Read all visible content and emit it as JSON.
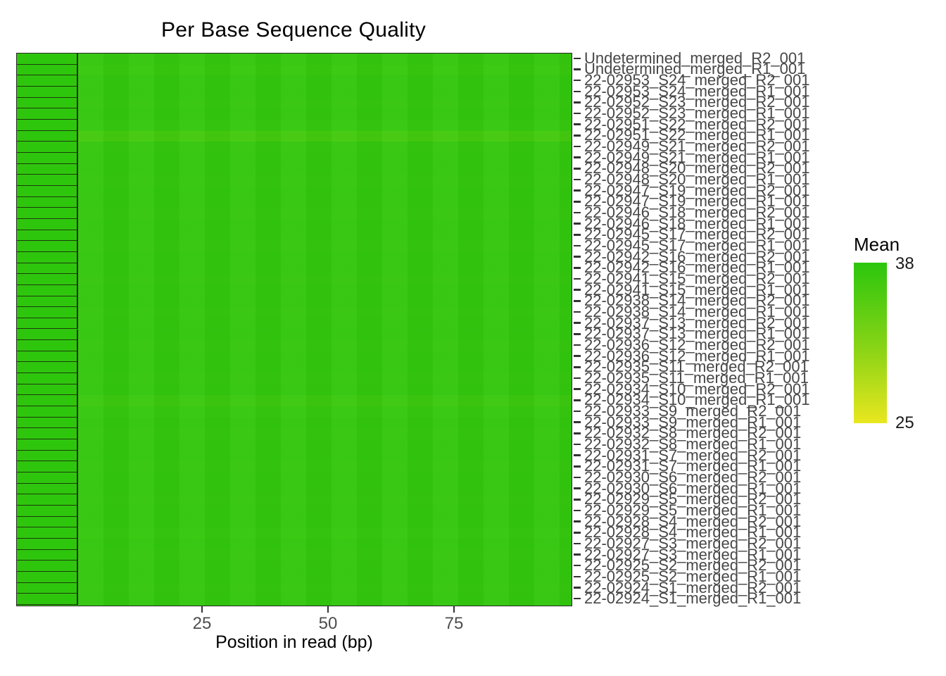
{
  "chart": {
    "title": "Per Base Sequence Quality",
    "xlabel": "Position in read (bp)",
    "legend": {
      "title": "Mean",
      "max_label": "38",
      "min_label": "25"
    }
  },
  "chart_data": {
    "type": "heatmap",
    "title": "Per Base Sequence Quality",
    "xlabel": "Position in read (bp)",
    "ylabel": "",
    "x_ticks": [
      25,
      50,
      75
    ],
    "x_range": [
      1,
      100
    ],
    "grid": false,
    "legend_position": "right",
    "color_scale": {
      "title": "Mean",
      "min": 25,
      "max": 38,
      "min_color": "#E9E71F",
      "mid_color": "#8CD416",
      "max_color": "#2BC60D"
    },
    "rows": [
      {
        "label": "Undetermined_merged_R2_001",
        "mean": 37.4,
        "first_bin_mean": 37.8
      },
      {
        "label": "Undetermined_merged_R1_001",
        "mean": 37.2,
        "first_bin_mean": 37.8
      },
      {
        "label": "22-02953_S24_merged_R2_001",
        "mean": 37.5,
        "first_bin_mean": 37.8
      },
      {
        "label": "22-02953_S24_merged_R1_001",
        "mean": 37.5,
        "first_bin_mean": 37.8
      },
      {
        "label": "22-02952_S23_merged_R2_001",
        "mean": 37.4,
        "first_bin_mean": 37.8
      },
      {
        "label": "22-02952_S23_merged_R1_001",
        "mean": 37.5,
        "first_bin_mean": 37.8
      },
      {
        "label": "22-02951_S22_merged_R2_001",
        "mean": 37.3,
        "first_bin_mean": 37.8
      },
      {
        "label": "22-02951_S22_merged_R1_001",
        "mean": 36.3,
        "first_bin_mean": 37.8
      },
      {
        "label": "22-02949_S21_merged_R2_001",
        "mean": 37.4,
        "first_bin_mean": 37.8
      },
      {
        "label": "22-02949_S21_merged_R1_001",
        "mean": 37.5,
        "first_bin_mean": 37.8
      },
      {
        "label": "22-02948_S20_merged_R2_001",
        "mean": 37.5,
        "first_bin_mean": 37.8
      },
      {
        "label": "22-02948_S20_merged_R1_001",
        "mean": 37.4,
        "first_bin_mean": 37.8
      },
      {
        "label": "22-02947_S19_merged_R2_001",
        "mean": 37.5,
        "first_bin_mean": 37.8
      },
      {
        "label": "22-02947_S19_merged_R1_001",
        "mean": 37.5,
        "first_bin_mean": 37.8
      },
      {
        "label": "22-02946_S18_merged_R2_001",
        "mean": 37.4,
        "first_bin_mean": 37.8
      },
      {
        "label": "22-02946_S18_merged_R1_001",
        "mean": 37.5,
        "first_bin_mean": 37.8
      },
      {
        "label": "22-02945_S17_merged_R2_001",
        "mean": 37.5,
        "first_bin_mean": 37.8
      },
      {
        "label": "22-02945_S17_merged_R1_001",
        "mean": 37.4,
        "first_bin_mean": 37.8
      },
      {
        "label": "22-02942_S16_merged_R2_001",
        "mean": 37.5,
        "first_bin_mean": 37.8
      },
      {
        "label": "22-02942_S16_merged_R1_001",
        "mean": 37.5,
        "first_bin_mean": 37.8
      },
      {
        "label": "22-02941_S15_merged_R2_001",
        "mean": 37.4,
        "first_bin_mean": 37.8
      },
      {
        "label": "22-02941_S15_merged_R1_001",
        "mean": 37.5,
        "first_bin_mean": 37.8
      },
      {
        "label": "22-02938_S14_merged_R2_001",
        "mean": 37.5,
        "first_bin_mean": 37.8
      },
      {
        "label": "22-02938_S14_merged_R1_001",
        "mean": 37.4,
        "first_bin_mean": 37.8
      },
      {
        "label": "22-02937_S13_merged_R2_001",
        "mean": 37.5,
        "first_bin_mean": 37.8
      },
      {
        "label": "22-02937_S13_merged_R1_001",
        "mean": 37.5,
        "first_bin_mean": 37.8
      },
      {
        "label": "22-02936_S12_merged_R2_001",
        "mean": 37.4,
        "first_bin_mean": 37.8
      },
      {
        "label": "22-02936_S12_merged_R1_001",
        "mean": 37.5,
        "first_bin_mean": 37.8
      },
      {
        "label": "22-02935_S11_merged_R2_001",
        "mean": 37.5,
        "first_bin_mean": 37.8
      },
      {
        "label": "22-02935_S11_merged_R1_001",
        "mean": 37.4,
        "first_bin_mean": 37.8
      },
      {
        "label": "22-02934_S10_merged_R2_001",
        "mean": 37.5,
        "first_bin_mean": 37.8
      },
      {
        "label": "22-02934_S10_merged_R1_001",
        "mean": 36.9,
        "first_bin_mean": 37.8
      },
      {
        "label": "22-02933_S9_merged_R2_001",
        "mean": 37.3,
        "first_bin_mean": 37.8
      },
      {
        "label": "22-02933_S9_merged_R1_001",
        "mean": 37.5,
        "first_bin_mean": 37.8
      },
      {
        "label": "22-02932_S8_merged_R2_001",
        "mean": 37.4,
        "first_bin_mean": 37.8
      },
      {
        "label": "22-02932_S8_merged_R1_001",
        "mean": 37.5,
        "first_bin_mean": 37.8
      },
      {
        "label": "22-02931_S7_merged_R2_001",
        "mean": 37.5,
        "first_bin_mean": 37.8
      },
      {
        "label": "22-02931_S7_merged_R1_001",
        "mean": 37.4,
        "first_bin_mean": 37.8
      },
      {
        "label": "22-02930_S6_merged_R2_001",
        "mean": 37.5,
        "first_bin_mean": 37.8
      },
      {
        "label": "22-02930_S6_merged_R1_001",
        "mean": 37.5,
        "first_bin_mean": 37.8
      },
      {
        "label": "22-02929_S5_merged_R2_001",
        "mean": 37.4,
        "first_bin_mean": 37.8
      },
      {
        "label": "22-02929_S5_merged_R1_001",
        "mean": 37.5,
        "first_bin_mean": 37.8
      },
      {
        "label": "22-02928_S4_merged_R2_001",
        "mean": 37.5,
        "first_bin_mean": 37.8
      },
      {
        "label": "22-02928_S4_merged_R1_001",
        "mean": 37.3,
        "first_bin_mean": 37.8
      },
      {
        "label": "22-02927_S3_merged_R2_001",
        "mean": 37.5,
        "first_bin_mean": 37.8
      },
      {
        "label": "22-02927_S3_merged_R1_001",
        "mean": 37.4,
        "first_bin_mean": 37.8
      },
      {
        "label": "22-02925_S2_merged_R2_001",
        "mean": 37.5,
        "first_bin_mean": 37.8
      },
      {
        "label": "22-02925_S2_merged_R1_001",
        "mean": 37.5,
        "first_bin_mean": 37.8
      },
      {
        "label": "22-02924_S1_merged_R2_001",
        "mean": 37.4,
        "first_bin_mean": 37.8
      },
      {
        "label": "22-02924_S1_merged_R1_001",
        "mean": 37.5,
        "first_bin_mean": 37.8
      }
    ]
  }
}
